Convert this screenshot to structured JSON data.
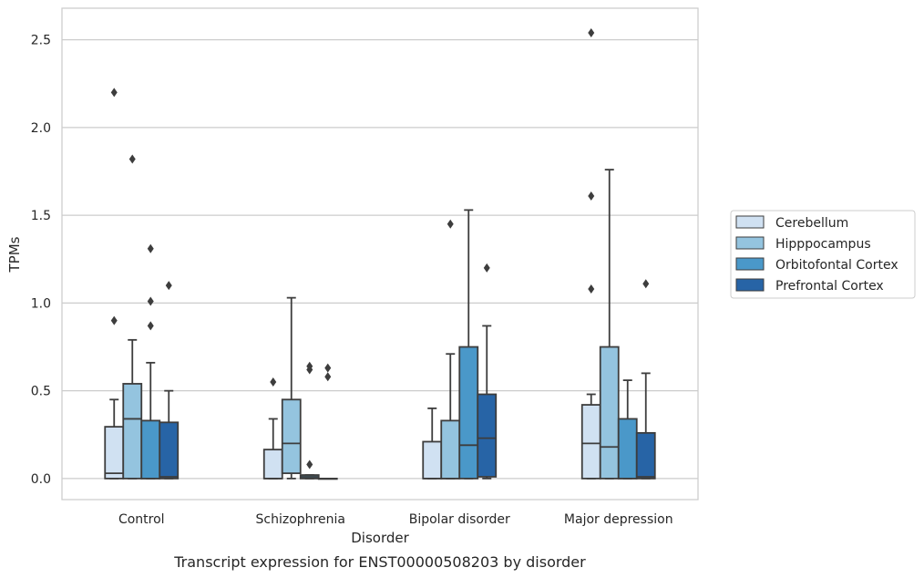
{
  "caption": "Transcript expression for ENST00000508203 by disorder",
  "chart_data": {
    "type": "box",
    "xlabel": "Disorder",
    "ylabel": "TPMs",
    "categories": [
      "Control",
      "Schizophrenia",
      "Bipolar disorder",
      "Major depression"
    ],
    "yticks": [
      "0.0",
      "0.5",
      "1.0",
      "1.5",
      "2.0",
      "2.5"
    ],
    "ylim": [
      -0.12,
      2.68
    ],
    "grid": "horizontal",
    "legend_position": "right",
    "series": [
      {
        "name": "Cerebellum",
        "color": "#d0e1f2",
        "boxes": [
          {
            "min": 0,
            "q1": 0,
            "median": 0.03,
            "q3": 0.295,
            "max": 0.45,
            "outliers": [
              0.9,
              2.2
            ]
          },
          {
            "min": 0,
            "q1": 0,
            "median": 0,
            "q3": 0.165,
            "max": 0.34,
            "outliers": [
              0.55
            ]
          },
          {
            "min": 0,
            "q1": 0,
            "median": 0,
            "q3": 0.21,
            "max": 0.4,
            "outliers": []
          },
          {
            "min": 0,
            "q1": 0,
            "median": 0.2,
            "q3": 0.42,
            "max": 0.48,
            "outliers": [
              1.08,
              1.61,
              2.54
            ]
          }
        ]
      },
      {
        "name": "Hipppocampus",
        "color": "#94c4df",
        "boxes": [
          {
            "min": 0,
            "q1": 0,
            "median": 0.34,
            "q3": 0.54,
            "max": 0.79,
            "outliers": [
              1.82
            ]
          },
          {
            "min": 0,
            "q1": 0.03,
            "median": 0.2,
            "q3": 0.45,
            "max": 1.03,
            "outliers": []
          },
          {
            "min": 0,
            "q1": 0,
            "median": 0,
            "q3": 0.33,
            "max": 0.71,
            "outliers": [
              1.45
            ]
          },
          {
            "min": 0,
            "q1": 0,
            "median": 0.18,
            "q3": 0.75,
            "max": 1.76,
            "outliers": []
          }
        ]
      },
      {
        "name": "Orbitofontal Cortex",
        "color": "#4a98c9",
        "boxes": [
          {
            "min": 0,
            "q1": 0,
            "median": 0,
            "q3": 0.33,
            "max": 0.66,
            "outliers": [
              0.87,
              1.01,
              1.31
            ]
          },
          {
            "min": 0,
            "q1": 0,
            "median": 0.01,
            "q3": 0.02,
            "max": 0.02,
            "outliers": [
              0.08,
              0.62,
              0.64
            ]
          },
          {
            "min": 0,
            "q1": 0,
            "median": 0.19,
            "q3": 0.75,
            "max": 1.53,
            "outliers": []
          },
          {
            "min": 0,
            "q1": 0,
            "median": 0,
            "q3": 0.34,
            "max": 0.56,
            "outliers": []
          }
        ]
      },
      {
        "name": "Prefrontal Cortex",
        "color": "#2764a6",
        "boxes": [
          {
            "min": 0,
            "q1": 0,
            "median": 0.01,
            "q3": 0.32,
            "max": 0.5,
            "outliers": [
              1.1
            ]
          },
          {
            "min": 0,
            "q1": 0,
            "median": 0,
            "q3": 0,
            "max": 0,
            "outliers": [
              0.58,
              0.63
            ]
          },
          {
            "min": 0,
            "q1": 0.01,
            "median": 0.23,
            "q3": 0.48,
            "max": 0.87,
            "outliers": [
              1.2
            ]
          },
          {
            "min": 0,
            "q1": 0,
            "median": 0.01,
            "q3": 0.26,
            "max": 0.6,
            "outliers": [
              1.11
            ]
          }
        ]
      }
    ]
  }
}
